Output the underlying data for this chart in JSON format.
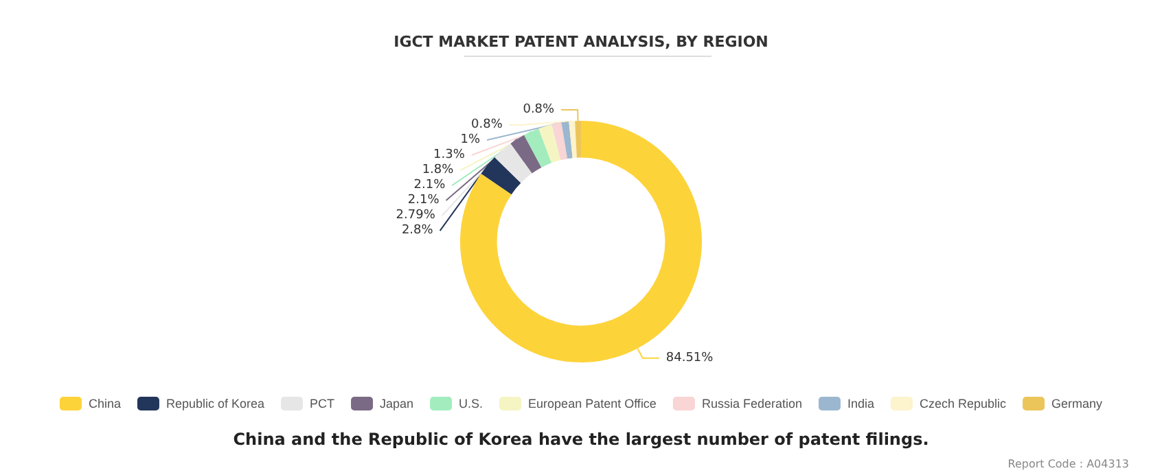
{
  "chart_data": {
    "type": "donut",
    "title": "IGCT MARKET PATENT ANALYSIS, BY REGION",
    "categories": [
      "China",
      "Republic of Korea",
      "PCT",
      "Japan",
      "U.S.",
      "European Patent Office",
      "Russia Federation",
      "India",
      "Czech Republic",
      "Germany"
    ],
    "values": [
      84.51,
      2.8,
      2.79,
      2.1,
      2.1,
      1.8,
      1.3,
      1,
      0.8,
      0.8
    ],
    "value_labels": [
      "84.51%",
      "2.8%",
      "2.79%",
      "2.1%",
      "2.1%",
      "1.8%",
      "1.3%",
      "1%",
      "0.8%",
      "0.8%"
    ],
    "colors": [
      "#fdd33a",
      "#22355a",
      "#e6e6e6",
      "#7b6a85",
      "#a3ecbe",
      "#f5f5c3",
      "#f9d5d5",
      "#9bb7cf",
      "#fdf3cc",
      "#ecc55a"
    ],
    "legend": "bottom",
    "annotations": [
      "China and the Republic of Korea have the largest number of patent filings.",
      "Report Code : A04313"
    ]
  }
}
